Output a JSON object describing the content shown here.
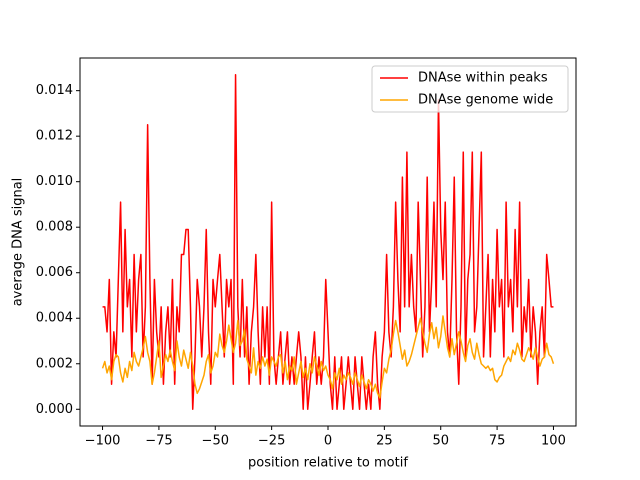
{
  "chart_data": {
    "type": "line",
    "xlabel": "position relative to motif",
    "ylabel": "average DNA signal",
    "x": [
      -100,
      -99,
      -98,
      -97,
      -96,
      -95,
      -94,
      -93,
      -92,
      -91,
      -90,
      -89,
      -88,
      -87,
      -86,
      -85,
      -84,
      -83,
      -82,
      -81,
      -80,
      -79,
      -78,
      -77,
      -76,
      -75,
      -74,
      -73,
      -72,
      -71,
      -70,
      -69,
      -68,
      -67,
      -66,
      -65,
      -64,
      -63,
      -62,
      -61,
      -60,
      -59,
      -58,
      -57,
      -56,
      -55,
      -54,
      -53,
      -52,
      -51,
      -50,
      -49,
      -48,
      -47,
      -46,
      -45,
      -44,
      -43,
      -42,
      -41,
      -40,
      -39,
      -38,
      -37,
      -36,
      -35,
      -34,
      -33,
      -32,
      -31,
      -30,
      -29,
      -28,
      -27,
      -26,
      -25,
      -24,
      -23,
      -22,
      -21,
      -20,
      -19,
      -18,
      -17,
      -16,
      -15,
      -14,
      -13,
      -12,
      -11,
      -10,
      -9,
      -8,
      -7,
      -6,
      -5,
      -4,
      -3,
      -2,
      -1,
      0,
      1,
      2,
      3,
      4,
      5,
      6,
      7,
      8,
      9,
      10,
      11,
      12,
      13,
      14,
      15,
      16,
      17,
      18,
      19,
      20,
      21,
      22,
      23,
      24,
      25,
      26,
      27,
      28,
      29,
      30,
      31,
      32,
      33,
      34,
      35,
      36,
      37,
      38,
      39,
      40,
      41,
      42,
      43,
      44,
      45,
      46,
      47,
      48,
      49,
      50,
      51,
      52,
      53,
      54,
      55,
      56,
      57,
      58,
      59,
      60,
      61,
      62,
      63,
      64,
      65,
      66,
      67,
      68,
      69,
      70,
      71,
      72,
      73,
      74,
      75,
      76,
      77,
      78,
      79,
      80,
      81,
      82,
      83,
      84,
      85,
      86,
      87,
      88,
      89,
      90,
      91,
      92,
      93,
      94,
      95,
      96,
      97,
      98,
      99,
      100
    ],
    "series": [
      {
        "name": "DNAse within peaks",
        "color": "#ff0000",
        "values": [
          0.0045,
          0.0045,
          0.0034,
          0.0057,
          0.0011,
          0.0034,
          0.0023,
          0.0057,
          0.0091,
          0.0034,
          0.0079,
          0.0045,
          0.0057,
          0.0023,
          0.0068,
          0.0034,
          0.0057,
          0.0068,
          0.0023,
          0.0045,
          0.0125,
          0.0057,
          0.0011,
          0.0057,
          0.0034,
          0.0023,
          0.0045,
          0.0011,
          0.0034,
          0.0045,
          0.0023,
          0.0057,
          0.0011,
          0.0045,
          0.0034,
          0.0068,
          0.0068,
          0.0079,
          0.0079,
          0.0045,
          0.0,
          0.0023,
          0.0057,
          0.0045,
          0.0023,
          0.0045,
          0.0079,
          0.0034,
          0.0011,
          0.0057,
          0.0045,
          0.0057,
          0.0068,
          0.0045,
          0.0023,
          0.0057,
          0.0045,
          0.0057,
          0.0011,
          0.0147,
          0.0045,
          0.0023,
          0.0057,
          0.0023,
          0.0045,
          0.0011,
          0.0034,
          0.0045,
          0.0068,
          0.0034,
          0.0011,
          0.0045,
          0.0023,
          0.0045,
          0.0011,
          0.0091,
          0.0023,
          0.0011,
          0.0023,
          0.0034,
          0.0011,
          0.0023,
          0.0034,
          0.0011,
          0.0023,
          0.0011,
          0.0023,
          0.0034,
          0.0023,
          0.0,
          0.0023,
          0.0,
          0.0011,
          0.0023,
          0.0034,
          0.0011,
          0.0023,
          0.0011,
          0.0023,
          0.0057,
          0.0034,
          0.0011,
          0.0,
          0.0023,
          0.0,
          0.0011,
          0.0023,
          0.0,
          0.0011,
          0.0023,
          0.0011,
          0.0,
          0.0023,
          0.0011,
          0.0,
          0.0023,
          0.0011,
          0.0,
          0.0011,
          0.0,
          0.0023,
          0.0034,
          0.0011,
          0.0,
          0.0023,
          0.0034,
          0.0068,
          0.0034,
          0.0023,
          0.0045,
          0.0091,
          0.0057,
          0.0034,
          0.0102,
          0.0045,
          0.0113,
          0.0045,
          0.0068,
          0.0045,
          0.0034,
          0.0091,
          0.0057,
          0.0023,
          0.0045,
          0.0102,
          0.0034,
          0.0057,
          0.0091,
          0.0045,
          0.0136,
          0.0079,
          0.0057,
          0.0091,
          0.0034,
          0.0023,
          0.0057,
          0.0102,
          0.0034,
          0.0011,
          0.0045,
          0.0113,
          0.0023,
          0.0057,
          0.0068,
          0.0113,
          0.0034,
          0.0045,
          0.0079,
          0.0113,
          0.0023,
          0.0045,
          0.0068,
          0.0023,
          0.0057,
          0.0034,
          0.0079,
          0.0045,
          0.0057,
          0.0023,
          0.0091,
          0.0045,
          0.0057,
          0.0034,
          0.0079,
          0.0045,
          0.0091,
          0.0023,
          0.0045,
          0.0034,
          0.0057,
          0.0023,
          0.0045,
          0.0034,
          0.0011,
          0.0034,
          0.0045,
          0.0023,
          0.0068,
          0.0057,
          0.0045,
          0.0045
        ]
      },
      {
        "name": "DNAse genome wide",
        "color": "#ffa500",
        "values": [
          0.0018,
          0.0021,
          0.0016,
          0.0019,
          0.0013,
          0.0021,
          0.0024,
          0.0023,
          0.0016,
          0.0012,
          0.0018,
          0.0014,
          0.0021,
          0.0017,
          0.0025,
          0.0021,
          0.0019,
          0.0023,
          0.0027,
          0.0032,
          0.0025,
          0.0021,
          0.0011,
          0.0016,
          0.0023,
          0.003,
          0.0014,
          0.0019,
          0.0024,
          0.0021,
          0.0026,
          0.0021,
          0.0017,
          0.003,
          0.0023,
          0.0019,
          0.0026,
          0.0022,
          0.0018,
          0.0025,
          0.0019,
          0.0011,
          0.0007,
          0.0009,
          0.0012,
          0.0015,
          0.0021,
          0.0024,
          0.0016,
          0.0019,
          0.0025,
          0.0023,
          0.0033,
          0.0028,
          0.0025,
          0.003,
          0.0037,
          0.0031,
          0.0025,
          0.0029,
          0.0039,
          0.0028,
          0.003,
          0.0035,
          0.0022,
          0.0019,
          0.0016,
          0.0027,
          0.0015,
          0.0021,
          0.0018,
          0.0023,
          0.0019,
          0.0022,
          0.0015,
          0.0023,
          0.0021,
          0.0019,
          0.0023,
          0.0024,
          0.0016,
          0.0021,
          0.0013,
          0.0019,
          0.0017,
          0.0023,
          0.0011,
          0.0016,
          0.0021,
          0.0014,
          0.0018,
          0.0013,
          0.002,
          0.0016,
          0.0023,
          0.0019,
          0.0015,
          0.0021,
          0.0017,
          0.0019,
          0.0015,
          0.0013,
          0.0009,
          0.0016,
          0.0013,
          0.0018,
          0.0011,
          0.0015,
          0.0013,
          0.0016,
          0.0014,
          0.0011,
          0.0016,
          0.0013,
          0.001,
          0.0015,
          0.0012,
          0.0009,
          0.0013,
          0.0011,
          0.0008,
          0.0011,
          0.0007,
          0.0005,
          0.0012,
          0.0018,
          0.0016,
          0.0022,
          0.0026,
          0.0033,
          0.0039,
          0.0034,
          0.0028,
          0.0022,
          0.0026,
          0.0019,
          0.0021,
          0.0024,
          0.0028,
          0.0032,
          0.0036,
          0.004,
          0.0034,
          0.0029,
          0.0025,
          0.0033,
          0.0038,
          0.0031,
          0.0036,
          0.0027,
          0.0032,
          0.0041,
          0.0034,
          0.0027,
          0.0023,
          0.0031,
          0.0024,
          0.0029,
          0.0034,
          0.003,
          0.0025,
          0.0021,
          0.0028,
          0.0031,
          0.0025,
          0.0022,
          0.0029,
          0.0024,
          0.002,
          0.0019,
          0.0018,
          0.0019,
          0.0017,
          0.0018,
          0.0013,
          0.0012,
          0.0014,
          0.0015,
          0.0019,
          0.0021,
          0.0023,
          0.0021,
          0.0026,
          0.0024,
          0.0029,
          0.0026,
          0.0022,
          0.0021,
          0.0024,
          0.0027,
          0.0025,
          0.0022,
          0.0027,
          0.0023,
          0.0019,
          0.0022,
          0.0023,
          0.0029,
          0.0024,
          0.0023,
          0.002
        ]
      }
    ],
    "xlim": [
      -110,
      110
    ],
    "ylim": [
      -0.000735,
      0.015435
    ],
    "xticks": [
      {
        "value": -100,
        "label": "−100"
      },
      {
        "value": -75,
        "label": "−75"
      },
      {
        "value": -50,
        "label": "−50"
      },
      {
        "value": -25,
        "label": "−25"
      },
      0,
      25,
      50,
      75,
      100
    ],
    "yticks": [
      {
        "value": 0,
        "label": "0.000"
      },
      {
        "value": 0.002,
        "label": "0.002"
      },
      {
        "value": 0.004,
        "label": "0.004"
      },
      {
        "value": 0.006,
        "label": "0.006"
      },
      {
        "value": 0.008,
        "label": "0.008"
      },
      {
        "value": 0.01,
        "label": "0.010"
      },
      {
        "value": 0.012,
        "label": "0.012"
      },
      {
        "value": 0.014,
        "label": "0.014"
      }
    ],
    "legend": "upper right",
    "grid": false
  }
}
